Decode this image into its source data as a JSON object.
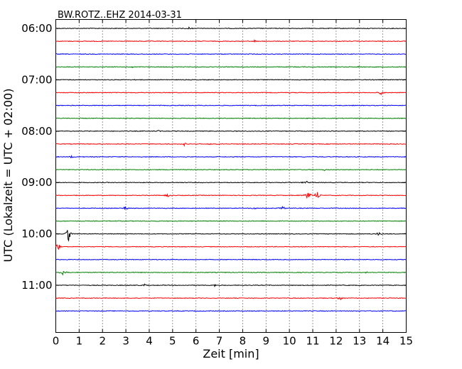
{
  "chart_data": {
    "type": "line",
    "title": "BW.ROTZ..EHZ 2014-03-31",
    "xlabel": "Zeit  [min]",
    "ylabel": "UTC (Lokalzeit = UTC + 02:00)",
    "xlim": [
      0,
      15
    ],
    "x_ticks": [
      "0",
      "1",
      "2",
      "3",
      "4",
      "5",
      "6",
      "7",
      "8",
      "9",
      "10",
      "11",
      "12",
      "13",
      "14",
      "15"
    ],
    "grid": "vertical dotted",
    "y_tick_labels": [
      "06:00",
      "07:00",
      "08:00",
      "09:00",
      "10:00",
      "11:00"
    ],
    "colors": [
      "#000000",
      "#ff0000",
      "#0000ff",
      "#008000"
    ],
    "traces": [
      {
        "start": "06:00",
        "events": [
          {
            "t": 5.7,
            "amp": 0.2
          }
        ]
      },
      {
        "start": "06:15",
        "events": [
          {
            "t": 8.5,
            "amp": 0.2
          }
        ]
      },
      {
        "start": "06:30",
        "events": []
      },
      {
        "start": "06:45",
        "events": [
          {
            "t": 3.3,
            "amp": 0.15
          },
          {
            "t": 13.0,
            "amp": 0.15
          }
        ]
      },
      {
        "start": "07:00",
        "events": []
      },
      {
        "start": "07:15",
        "events": [
          {
            "t": 13.9,
            "amp": 0.4
          }
        ]
      },
      {
        "start": "07:30",
        "events": []
      },
      {
        "start": "07:45",
        "events": []
      },
      {
        "start": "08:00",
        "events": [
          {
            "t": 4.4,
            "amp": 0.15
          }
        ]
      },
      {
        "start": "08:15",
        "events": [
          {
            "t": 5.5,
            "amp": 0.2
          },
          {
            "t": 6.6,
            "amp": 0.15
          }
        ]
      },
      {
        "start": "08:30",
        "events": [
          {
            "t": 0.7,
            "amp": 0.3
          }
        ]
      },
      {
        "start": "08:45",
        "events": [
          {
            "t": 11.5,
            "amp": 0.15
          }
        ]
      },
      {
        "start": "09:00",
        "events": [
          {
            "t": 10.7,
            "amp": 0.3
          }
        ]
      },
      {
        "start": "09:15",
        "events": [
          {
            "t": 4.8,
            "amp": 0.25
          },
          {
            "t": 10.8,
            "amp": 0.9
          },
          {
            "t": 11.2,
            "amp": 0.7
          }
        ]
      },
      {
        "start": "09:30",
        "events": [
          {
            "t": 3.0,
            "amp": 0.3
          },
          {
            "t": 8.5,
            "amp": 0.25
          },
          {
            "t": 9.7,
            "amp": 0.3
          }
        ]
      },
      {
        "start": "09:45",
        "events": []
      },
      {
        "start": "10:00",
        "events": [
          {
            "t": 0.55,
            "amp": 1.2
          },
          {
            "t": 13.8,
            "amp": 0.3
          }
        ]
      },
      {
        "start": "10:15",
        "events": [
          {
            "t": 0.1,
            "amp": 0.7
          }
        ]
      },
      {
        "start": "10:30",
        "events": []
      },
      {
        "start": "10:45",
        "events": [
          {
            "t": 0.3,
            "amp": 0.4
          },
          {
            "t": 13.3,
            "amp": 0.15
          }
        ]
      },
      {
        "start": "11:00",
        "events": [
          {
            "t": 3.8,
            "amp": 0.2
          },
          {
            "t": 6.8,
            "amp": 0.2
          }
        ]
      },
      {
        "start": "11:15",
        "events": [
          {
            "t": 12.2,
            "amp": 0.4
          }
        ]
      },
      {
        "start": "11:30",
        "events": []
      }
    ]
  }
}
